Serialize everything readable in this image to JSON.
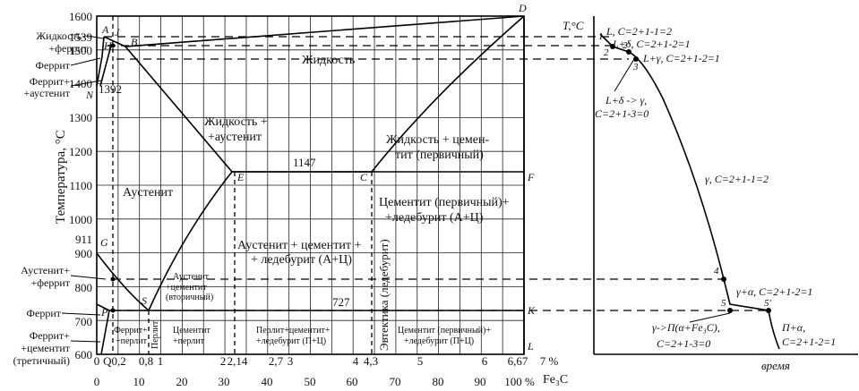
{
  "left_axis": {
    "y_title": "Температура, °C",
    "y_ticks": [
      "1600",
      "1500",
      "1400",
      "1300",
      "1200",
      "1100",
      "1000",
      "900",
      "800",
      "700",
      "600"
    ],
    "extra_ticks": [
      "1539",
      "1392",
      "911"
    ],
    "top_ticks": [
      "0",
      "Q0,2",
      "0,8",
      "1",
      "2",
      "2,14",
      "2,7",
      "3",
      "4",
      "4,3",
      "5",
      "6",
      "6,67",
      "7 %"
    ],
    "bottom_ticks": [
      "0",
      "10",
      "20",
      "30",
      "40",
      "50",
      "60",
      "70",
      "80",
      "90",
      "100 %"
    ],
    "bottom_unit": "Fe₃C"
  },
  "point_letters": [
    "A",
    "J",
    "B",
    "H",
    "N",
    "D",
    "E",
    "C",
    "F",
    "G",
    "S",
    "P",
    "K",
    "L",
    "Q"
  ],
  "values": {
    "eutectic": "1147",
    "eutectoid": "727"
  },
  "left_labels": {
    "liq_ferrite_1": "Жидкость+",
    "liq_ferrite_2": "+феррит",
    "ferrite_top": "Феррит",
    "fer_aus_1": "Феррит+",
    "fer_aus_2": "+аустенит",
    "aus_fer_1": "Аустенит+",
    "aus_fer_2": "+феррит",
    "ferrite_bottom": "Феррит",
    "fer_cem_1": "Феррит+",
    "fer_cem_2": "+цементит",
    "fer_cem_3": "(третичный)"
  },
  "regions": {
    "liquid": "Жидкость",
    "liq_aus_1": "Жидкость +",
    "liq_aus_2": "+аустенит",
    "liq_cem_1": "Жидкость + цемен-",
    "liq_cem_2": "тит (первичный)",
    "austenite": "Аустенит",
    "cem_led_1": "Цементит (первичный)+",
    "cem_led_2": "+ледебурит (А+Ц)",
    "aus_cem_led_1": "Аустенит + цементит +",
    "aus_cem_led_2": "+ ледебурит (А+Ц)",
    "aus_cem2_1": "Аустенит",
    "aus_cem2_2": "+цементит",
    "aus_cem2_3": "(вторичный)",
    "eutectic_vertical": "Эвтектика (ледебурит)",
    "fer_per_1": "Феррит+",
    "fer_per_2": "+перлит",
    "pearlite": "Перлит",
    "cem_per_1": "Цементит",
    "cem_per_2": "+перлит",
    "per_cem_led_1": "Перлит+цементит+",
    "per_cem_led_2": "+ледебурит (П+Ц)",
    "cem_led2_1": "Цементит (первичный)+",
    "cem_led2_2": "+ледебурит (П+Ц)"
  },
  "cooling_curve": {
    "axis_y": "T,°C",
    "axis_x": "время",
    "point_numbers": [
      "1",
      "2",
      "2'",
      "3",
      "4",
      "5",
      "5'"
    ],
    "labels": {
      "l1": "L, C=2+1-1=2",
      "l2": "L+δ, C=2+1-2=1",
      "l3": "L+γ, C=2+1-2=1",
      "l4a": "L+δ -> γ,",
      "l4b": "C=2+1-3=0",
      "l5": "γ, C=2+1-1=2",
      "l6": "γ+α, C=2+1-2=1",
      "l7a": "γ->П(α+Fe₃C),",
      "l7b": "C=2+1-3=0",
      "l8a": "П+α,",
      "l8b": "C=2+1-2=1"
    }
  }
}
